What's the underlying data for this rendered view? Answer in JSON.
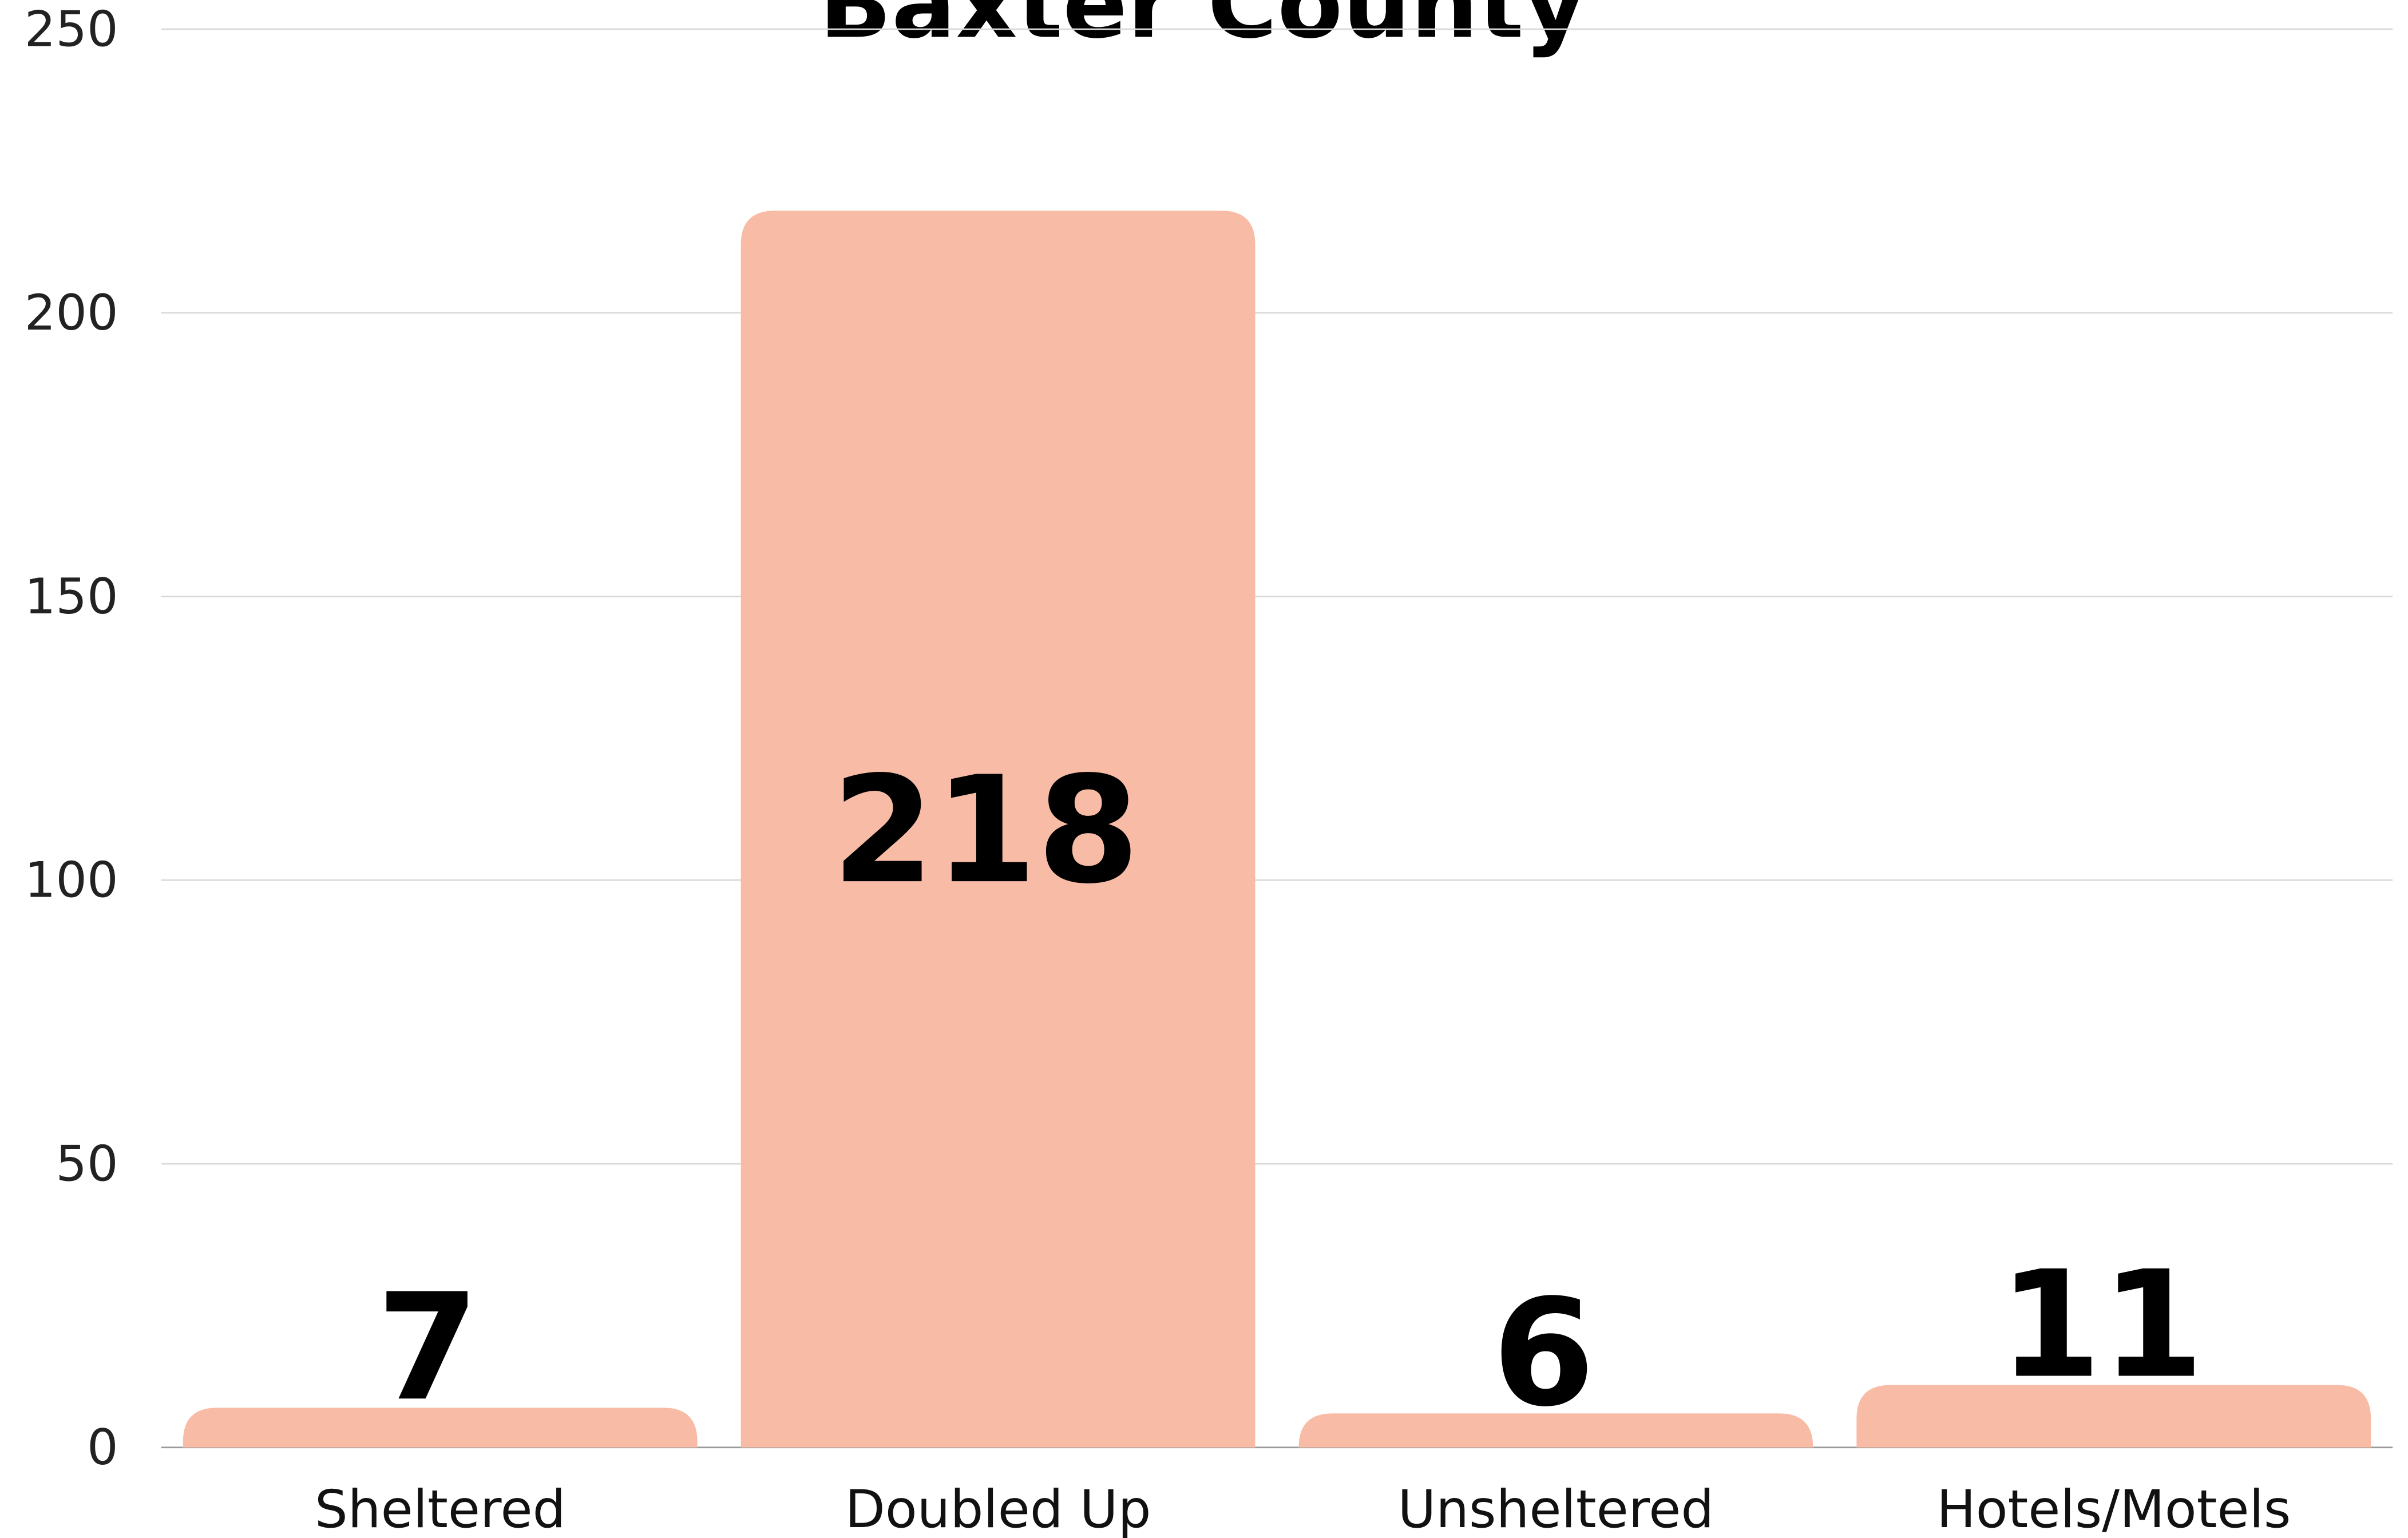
{
  "chart_data": {
    "type": "bar",
    "title": "Baxter County",
    "categories": [
      "Sheltered",
      "Doubled Up",
      "Unsheltered",
      "Hotels/Motels"
    ],
    "values": [
      7,
      218,
      6,
      11
    ],
    "color": "#f8bca6",
    "ylim": [
      0,
      250
    ],
    "yticks": [
      0,
      50,
      100,
      150,
      200,
      250
    ],
    "grid": true
  }
}
